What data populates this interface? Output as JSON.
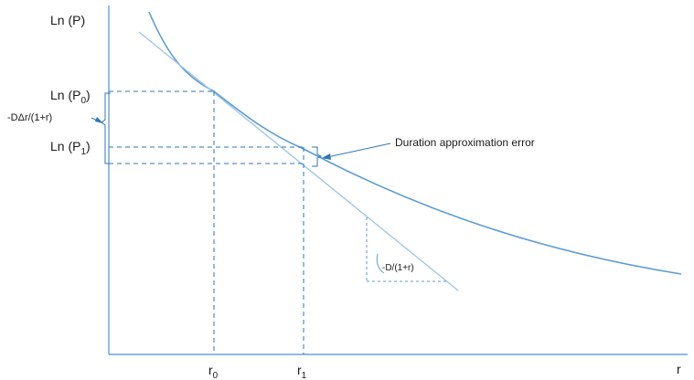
{
  "axes": {
    "y_label": "Ln (P)",
    "x_label": "r"
  },
  "y_markers": {
    "p0": {
      "base": "Ln (P",
      "sub": "0",
      "close": ")"
    },
    "p1": {
      "base": "Ln (P",
      "sub": "1",
      "close": ")"
    }
  },
  "x_markers": {
    "r0": {
      "base": "r",
      "sub": "0"
    },
    "r1": {
      "base": "r",
      "sub": "1"
    }
  },
  "annotations": {
    "bracket_label": "-DΔr/(1+r)",
    "error_label": "Duration approximation error",
    "slope_label": "-D/(1+r)"
  },
  "colors": {
    "axis": "#4a90d9",
    "curve": "#5b9bd5",
    "tangent": "#9dc3e6",
    "dashed": "#2e75b6",
    "text": "#1a1a1a"
  }
}
